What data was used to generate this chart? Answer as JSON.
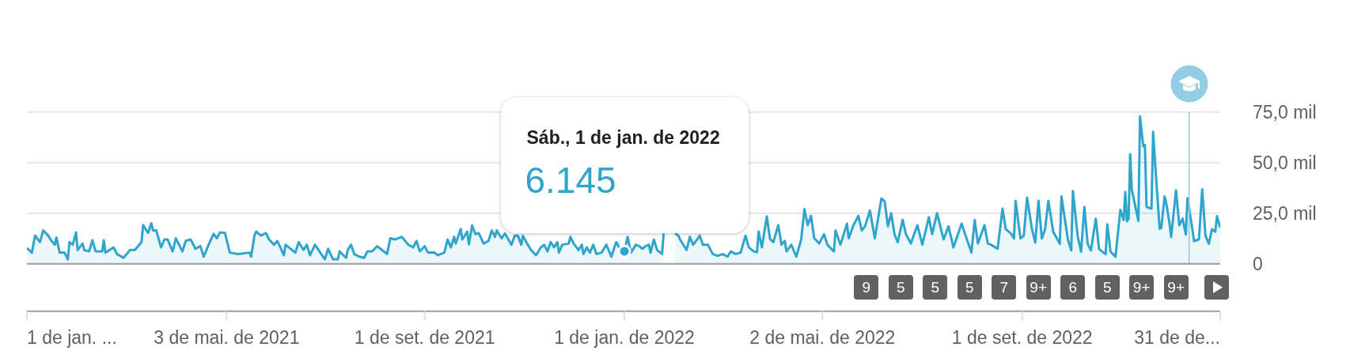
{
  "chart_data": {
    "type": "area",
    "color": "#2fa4cd",
    "x": [
      "2021-01-01",
      "2021-01-04",
      "2021-01-06",
      "2021-01-09",
      "2021-01-11",
      "2021-01-14",
      "2021-01-16",
      "2021-01-18",
      "2021-01-19",
      "2021-01-21",
      "2021-01-24",
      "2021-01-26",
      "2021-01-27",
      "2021-01-29",
      "2021-01-31",
      "2021-02-01",
      "2021-02-04",
      "2021-02-05",
      "2021-02-08",
      "2021-02-10",
      "2021-02-12",
      "2021-02-16",
      "2021-02-17",
      "2021-02-18",
      "2021-02-23",
      "2021-02-25",
      "2021-03-01",
      "2021-03-05",
      "2021-03-08",
      "2021-03-12",
      "2021-03-13",
      "2021-03-16",
      "2021-03-18",
      "2021-03-19",
      "2021-03-21",
      "2021-03-24",
      "2021-03-26",
      "2021-03-28",
      "2021-03-31",
      "2021-04-02",
      "2021-04-06",
      "2021-04-08",
      "2021-04-11",
      "2021-04-14",
      "2021-04-17",
      "2021-04-19",
      "2021-04-22",
      "2021-04-25",
      "2021-04-27",
      "2021-04-29",
      "2021-05-02",
      "2021-05-05",
      "2021-05-10",
      "2021-05-17",
      "2021-05-18",
      "2021-05-20",
      "2021-05-21",
      "2021-05-24",
      "2021-05-27",
      "2021-05-29",
      "2021-06-01",
      "2021-06-03",
      "2021-06-07",
      "2021-06-08",
      "2021-06-14",
      "2021-06-16",
      "2021-06-19",
      "2021-06-21",
      "2021-06-23",
      "2021-06-26",
      "2021-07-02",
      "2021-07-04",
      "2021-07-07",
      "2021-07-10",
      "2021-07-11",
      "2021-07-15",
      "2021-07-16",
      "2021-07-18",
      "2021-07-20",
      "2021-07-23",
      "2021-07-26",
      "2021-07-28",
      "2021-07-31",
      "2021-08-03",
      "2021-08-05",
      "2021-08-09",
      "2021-08-11",
      "2021-08-14",
      "2021-08-18",
      "2021-08-22",
      "2021-08-25",
      "2021-08-27",
      "2021-08-29",
      "2021-09-01",
      "2021-09-03",
      "2021-09-07",
      "2021-09-09",
      "2021-09-13",
      "2021-09-15",
      "2021-09-17",
      "2021-09-19",
      "2021-09-20",
      "2021-09-23",
      "2021-09-24",
      "2021-09-27",
      "2021-09-28",
      "2021-09-30",
      "2021-10-02",
      "2021-10-04",
      "2021-10-07",
      "2021-10-10",
      "2021-10-12",
      "2021-10-14",
      "2021-10-15",
      "2021-10-18",
      "2021-10-20",
      "2021-10-24",
      "2021-10-26",
      "2021-10-28",
      "2021-10-30",
      "2021-10-31",
      "2021-11-03",
      "2021-11-05",
      "2021-11-08",
      "2021-11-11",
      "2021-11-13",
      "2021-11-15",
      "2021-11-17",
      "2021-11-19",
      "2021-11-21",
      "2021-11-22",
      "2021-11-24",
      "2021-11-28",
      "2021-11-29",
      "2021-12-01",
      "2021-12-04",
      "2021-12-06",
      "2021-12-07",
      "2021-12-09",
      "2021-12-11",
      "2021-12-13",
      "2021-12-15",
      "2021-12-18",
      "2021-12-21",
      "2021-12-23",
      "2021-12-24",
      "2021-12-27",
      "2021-12-28",
      "2021-12-30",
      "2022-01-01",
      "2022-01-03",
      "2022-01-05",
      "2022-01-08",
      "2022-01-10",
      "2022-01-12",
      "2022-01-14",
      "2022-01-16",
      "2022-01-17",
      "2022-01-19",
      "2022-01-21",
      "2022-01-24",
      "2022-01-25",
      "2022-01-28",
      "2022-02-01",
      "2022-02-03",
      "2022-02-04",
      "2022-02-08",
      "2022-02-10",
      "2022-02-12",
      "2022-02-15",
      "2022-02-16",
      "2022-02-18",
      "2022-02-21",
      "2022-02-24",
      "2022-02-27",
      "2022-03-02",
      "2022-03-05",
      "2022-03-07",
      "2022-03-10",
      "2022-03-13",
      "2022-03-16",
      "2022-03-18",
      "2022-03-21",
      "2022-03-23",
      "2022-03-24",
      "2022-03-26",
      "2022-03-29",
      "2022-03-31",
      "2022-04-02",
      "2022-04-05",
      "2022-04-07",
      "2022-04-09",
      "2022-04-10",
      "2022-04-13",
      "2022-04-16",
      "2022-04-19",
      "2022-04-21",
      "2022-04-23",
      "2022-04-25",
      "2022-04-27",
      "2022-04-30",
      "2022-05-03",
      "2022-05-05",
      "2022-05-09",
      "2022-05-10",
      "2022-05-13",
      "2022-05-17",
      "2022-05-18",
      "2022-05-21",
      "2022-05-24",
      "2022-05-26",
      "2022-05-28",
      "2022-05-31",
      "2022-06-03",
      "2022-06-07",
      "2022-06-09",
      "2022-06-11",
      "2022-06-13",
      "2022-06-15",
      "2022-06-17",
      "2022-06-20",
      "2022-06-22",
      "2022-06-25",
      "2022-06-29",
      "2022-07-02",
      "2022-07-06",
      "2022-07-08",
      "2022-07-11",
      "2022-07-15",
      "2022-07-18",
      "2022-07-21",
      "2022-07-26",
      "2022-08-01",
      "2022-08-03",
      "2022-08-05",
      "2022-08-09",
      "2022-08-11",
      "2022-08-13",
      "2022-08-17",
      "2022-08-20",
      "2022-08-22",
      "2022-08-25",
      "2022-08-27",
      "2022-08-28",
      "2022-08-31",
      "2022-09-02",
      "2022-09-04",
      "2022-09-07",
      "2022-09-09",
      "2022-09-11",
      "2022-09-13",
      "2022-09-15",
      "2022-09-17",
      "2022-09-20",
      "2022-09-24",
      "2022-09-25",
      "2022-09-29",
      "2022-10-01",
      "2022-10-02",
      "2022-10-05",
      "2022-10-07",
      "2022-10-09",
      "2022-10-11",
      "2022-10-13",
      "2022-10-16",
      "2022-10-18",
      "2022-10-22",
      "2022-10-23",
      "2022-10-25",
      "2022-10-28",
      "2022-10-31",
      "2022-11-02",
      "2022-11-03",
      "2022-11-04",
      "2022-11-05",
      "2022-11-06",
      "2022-11-07",
      "2022-11-11",
      "2022-11-12",
      "2022-11-14",
      "2022-11-15",
      "2022-11-16",
      "2022-11-19",
      "2022-11-20",
      "2022-11-22",
      "2022-11-24",
      "2022-11-25",
      "2022-11-27",
      "2022-11-28",
      "2022-11-30",
      "2022-12-01",
      "2022-12-04",
      "2022-12-06",
      "2022-12-08",
      "2022-12-10",
      "2022-12-11",
      "2022-12-14",
      "2022-12-15",
      "2022-12-18",
      "2022-12-20",
      "2022-12-22",
      "2022-12-24",
      "2022-12-26",
      "2022-12-28",
      "2022-12-29",
      "2022-12-31"
    ],
    "values": [
      7.8,
      5.5,
      13.9,
      10.7,
      16.5,
      13.9,
      11.3,
      9.4,
      13.0,
      5.5,
      5.5,
      2.2,
      10.7,
      9.4,
      15.5,
      6.8,
      10.0,
      6.8,
      6.1,
      11.6,
      6.1,
      6.1,
      11.6,
      5.5,
      8.1,
      4.8,
      2.9,
      6.8,
      6.8,
      10.7,
      19.1,
      15.2,
      20.0,
      16.5,
      16.5,
      8.1,
      12.0,
      12.0,
      6.1,
      12.6,
      6.1,
      11.3,
      12.0,
      7.4,
      8.7,
      3.5,
      9.4,
      14.8,
      12.6,
      15.5,
      15.2,
      5.5,
      4.8,
      5.5,
      3.5,
      13.9,
      15.9,
      13.9,
      15.2,
      12.0,
      9.4,
      11.3,
      4.2,
      9.4,
      5.5,
      10.7,
      6.8,
      9.4,
      4.2,
      9.4,
      2.2,
      7.4,
      2.2,
      2.2,
      6.1,
      2.9,
      6.8,
      9.4,
      4.8,
      3.5,
      2.9,
      6.1,
      6.1,
      8.7,
      7.4,
      4.8,
      12.6,
      12.0,
      13.3,
      9.4,
      8.1,
      11.3,
      6.1,
      8.7,
      5.5,
      5.5,
      4.2,
      5.5,
      12.0,
      8.1,
      13.3,
      10.0,
      17.2,
      12.0,
      15.9,
      9.6,
      18.9,
      14.6,
      15.2,
      10.0,
      11.3,
      16.5,
      13.3,
      16.5,
      12.6,
      15.0,
      9.4,
      13.8,
      13.8,
      9.4,
      13.8,
      9.4,
      6.8,
      4.2,
      8.1,
      9.4,
      6.1,
      10.7,
      8.1,
      10.7,
      5.5,
      9.4,
      10.0,
      13.3,
      10.0,
      6.8,
      9.4,
      4.8,
      8.1,
      5.5,
      9.4,
      4.8,
      5.5,
      9.4,
      5.5,
      3.5,
      10.7,
      9.4,
      6.1,
      6.145,
      13.3,
      5.5,
      9.4,
      8.7,
      7.4,
      8.7,
      9.4,
      5.5,
      12.0,
      6.8,
      4.8,
      15.0,
      null,
      15.0,
      13.9,
      12.0,
      6.8,
      13.3,
      9.4,
      12.6,
      13.9,
      9.4,
      9.4,
      4.8,
      3.9,
      4.8,
      3.5,
      6.1,
      4.8,
      5.5,
      13.9,
      8.1,
      6.1,
      5.7,
      15.9,
      8.1,
      23.4,
      12.2,
      10.7,
      19.1,
      9.4,
      11.3,
      6.1,
      9.4,
      3.5,
      12.0,
      27.0,
      19.1,
      23.7,
      12.6,
      10.0,
      14.6,
      9.4,
      6.1,
      16.5,
      9.4,
      19.8,
      12.6,
      19.1,
      23.7,
      16.5,
      18.5,
      26.3,
      12.6,
      32.2,
      30.9,
      18.5,
      25.0,
      14.6,
      10.7,
      21.7,
      14.6,
      10.0,
      19.1,
      9.4,
      23.0,
      14.6,
      25.0,
      12.0,
      18.5,
      8.1,
      19.8,
      5.5,
      21.7,
      10.0,
      19.1,
      10.0,
      9.4,
      7.4,
      27.2,
      17.1,
      15.1,
      12.5,
      31.0,
      12.5,
      13.8,
      32.7,
      17.1,
      10.5,
      31.1,
      12.5,
      17.1,
      31.1,
      15.8,
      9.9,
      33.3,
      11.8,
      6.6,
      35.9,
      13.2,
      6.0,
      28.1,
      9.9,
      6.6,
      22.3,
      7.3,
      4.7,
      19.4,
      6.0,
      3.4,
      26.6,
      21.6,
      35.5,
      21.0,
      22.3,
      54.2,
      36.6,
      21.2,
      72.8,
      58.1,
      58.7,
      28.1,
      27.2,
      65.2,
      40.5,
      17.3,
      17.7,
      33.3,
      30.1,
      20.3,
      13.2,
      36.3,
      19.0,
      22.3,
      14.5,
      32.4,
      17.1,
      11.2,
      12.1,
      36.8,
      13.8,
      9.9,
      17.1,
      15.8,
      23.6,
      17.7
    ],
    "xlim": [
      "2021-01-01",
      "2022-12-31"
    ],
    "xticks": [
      {
        "value": "2021-01-01",
        "label": "1 de jan. ..."
      },
      {
        "value": "2021-05-03",
        "label": "3 de mai. de 2021"
      },
      {
        "value": "2021-09-01",
        "label": "1 de set. de 2021"
      },
      {
        "value": "2022-01-01",
        "label": "1 de jan. de 2022"
      },
      {
        "value": "2022-05-02",
        "label": "2 de mai. de 2022"
      },
      {
        "value": "2022-09-01",
        "label": "1 de set. de 2022"
      },
      {
        "value": "2022-12-31",
        "label": "31 de de..."
      }
    ],
    "ylim": [
      0,
      75
    ],
    "yticks": [
      0,
      {
        "value": 25,
        "label": "25,0 mil"
      },
      {
        "value": 50,
        "label": "50,0 mil"
      },
      {
        "value": 75,
        "label": "75,0 mil"
      }
    ],
    "grid": "y",
    "ref_lines": [
      {
        "axis": "x",
        "value": "2022-12-12",
        "color": "#93cde4"
      }
    ],
    "annotations": [
      "Sáb., 1 de jan. de 2022",
      {
        "text": "6.145",
        "x": "2022-01-01",
        "y": 6.145
      },
      "9",
      "5",
      "5",
      "5",
      "7",
      "9+",
      "6",
      "5",
      "9+",
      "9+"
    ]
  }
}
